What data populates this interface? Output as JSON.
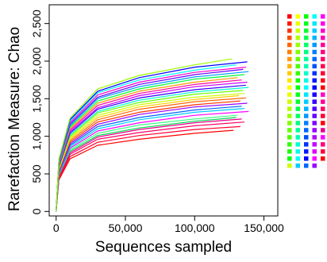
{
  "chart_data": {
    "type": "line",
    "title": "",
    "xlabel": "Sequences sampled",
    "ylabel": "Rarefaction Measure: Chao",
    "xlim": [
      -5000,
      160000
    ],
    "ylim": [
      -60,
      2750
    ],
    "x_ticks": [
      {
        "value": 0,
        "label": "0"
      },
      {
        "value": 50000,
        "label": "50,000"
      },
      {
        "value": 100000,
        "label": "100,000"
      },
      {
        "value": 150000,
        "label": "150,000"
      }
    ],
    "y_ticks": [
      {
        "value": 0,
        "label": "0"
      },
      {
        "value": 500,
        "label": "500"
      },
      {
        "value": 1000,
        "label": "1,000"
      },
      {
        "value": 1500,
        "label": "1,500"
      },
      {
        "value": 2000,
        "label": "2,000"
      },
      {
        "value": 2500,
        "label": "2,500"
      }
    ],
    "grid": false,
    "legend_placement": "right",
    "curve_shape": "rarefaction (saturating)",
    "series": [
      {
        "color": "#ff0000",
        "x": [
          0,
          2000,
          10000,
          30000,
          60000,
          100000,
          128000
        ],
        "y": [
          0,
          420,
          700,
          880,
          960,
          1040,
          1080
        ]
      },
      {
        "color": "#ff0033",
        "x": [
          0,
          2000,
          10000,
          30000,
          60000,
          100000,
          133000
        ],
        "y": [
          0,
          440,
          730,
          920,
          1010,
          1090,
          1130
        ]
      },
      {
        "color": "#ff0066",
        "x": [
          0,
          2000,
          10000,
          30000,
          60000,
          100000,
          136000
        ],
        "y": [
          0,
          460,
          760,
          960,
          1050,
          1140,
          1190
        ]
      },
      {
        "color": "#e6008a",
        "x": [
          0,
          2000,
          10000,
          30000,
          60000,
          100000,
          134000
        ],
        "y": [
          0,
          470,
          780,
          990,
          1090,
          1180,
          1230
        ]
      },
      {
        "color": "#00d94d",
        "x": [
          0,
          2000,
          10000,
          30000,
          60000,
          100000,
          130000
        ],
        "y": [
          0,
          480,
          800,
          1010,
          1110,
          1200,
          1250
        ]
      },
      {
        "color": "#44ff88",
        "x": [
          0,
          2000,
          10000,
          30000,
          60000,
          100000,
          131000
        ],
        "y": [
          0,
          490,
          820,
          1040,
          1150,
          1230,
          1280
        ]
      },
      {
        "color": "#ff00ff",
        "x": [
          0,
          2000,
          10000,
          30000,
          60000,
          100000,
          139000
        ],
        "y": [
          0,
          500,
          840,
          1070,
          1180,
          1280,
          1330
        ]
      },
      {
        "color": "#00ccff",
        "x": [
          0,
          2000,
          10000,
          30000,
          60000,
          100000,
          136000
        ],
        "y": [
          0,
          510,
          860,
          1100,
          1220,
          1320,
          1370
        ]
      },
      {
        "color": "#0066ff",
        "x": [
          0,
          2000,
          10000,
          30000,
          60000,
          100000,
          134000
        ],
        "y": [
          0,
          520,
          880,
          1130,
          1250,
          1350,
          1400
        ]
      },
      {
        "color": "#9900ff",
        "x": [
          0,
          2000,
          10000,
          30000,
          60000,
          100000,
          138000
        ],
        "y": [
          0,
          530,
          900,
          1160,
          1290,
          1390,
          1440
        ]
      },
      {
        "color": "#ff3300",
        "x": [
          0,
          2000,
          10000,
          30000,
          60000,
          100000,
          133000
        ],
        "y": [
          0,
          540,
          920,
          1190,
          1320,
          1420,
          1470
        ]
      },
      {
        "color": "#ff6600",
        "x": [
          0,
          2000,
          10000,
          30000,
          60000,
          100000,
          137000
        ],
        "y": [
          0,
          550,
          940,
          1220,
          1360,
          1460,
          1510
        ]
      },
      {
        "color": "#ffcc00",
        "x": [
          0,
          2000,
          10000,
          30000,
          60000,
          100000,
          132000
        ],
        "y": [
          0,
          560,
          960,
          1250,
          1390,
          1490,
          1540
        ]
      },
      {
        "color": "#ccff00",
        "x": [
          0,
          2000,
          10000,
          30000,
          60000,
          100000,
          136000
        ],
        "y": [
          0,
          570,
          980,
          1280,
          1420,
          1520,
          1570
        ]
      },
      {
        "color": "#66ff00",
        "x": [
          0,
          2000,
          10000,
          30000,
          60000,
          100000,
          135000
        ],
        "y": [
          0,
          580,
          1000,
          1310,
          1450,
          1560,
          1610
        ]
      },
      {
        "color": "#00ffcc",
        "x": [
          0,
          2000,
          10000,
          30000,
          60000,
          100000,
          139000
        ],
        "y": [
          0,
          590,
          1020,
          1330,
          1480,
          1590,
          1650
        ]
      },
      {
        "color": "#3300ff",
        "x": [
          0,
          2000,
          10000,
          30000,
          60000,
          100000,
          137000
        ],
        "y": [
          0,
          600,
          1040,
          1360,
          1510,
          1620,
          1680
        ]
      },
      {
        "color": "#cc00ff",
        "x": [
          0,
          2000,
          10000,
          30000,
          60000,
          100000,
          138000
        ],
        "y": [
          0,
          610,
          1060,
          1380,
          1540,
          1660,
          1720
        ]
      },
      {
        "color": "#ff0099",
        "x": [
          0,
          2000,
          10000,
          30000,
          60000,
          100000,
          134000
        ],
        "y": [
          0,
          620,
          1080,
          1410,
          1570,
          1690,
          1750
        ]
      },
      {
        "color": "#ff9900",
        "x": [
          0,
          2000,
          10000,
          30000,
          60000,
          100000,
          131000
        ],
        "y": [
          0,
          630,
          1100,
          1440,
          1600,
          1720,
          1780
        ]
      },
      {
        "color": "#00ff33",
        "x": [
          0,
          2000,
          10000,
          30000,
          60000,
          100000,
          136000
        ],
        "y": [
          0,
          640,
          1120,
          1470,
          1630,
          1760,
          1820
        ]
      },
      {
        "color": "#0099ff",
        "x": [
          0,
          2000,
          10000,
          30000,
          60000,
          100000,
          139000
        ],
        "y": [
          0,
          650,
          1140,
          1500,
          1660,
          1790,
          1860
        ]
      },
      {
        "color": "#6600ff",
        "x": [
          0,
          2000,
          10000,
          30000,
          60000,
          100000,
          135000
        ],
        "y": [
          0,
          660,
          1160,
          1520,
          1690,
          1820,
          1890
        ]
      },
      {
        "color": "#ff00cc",
        "x": [
          0,
          2000,
          10000,
          30000,
          60000,
          100000,
          137000
        ],
        "y": [
          0,
          670,
          1180,
          1550,
          1720,
          1850,
          1920
        ]
      },
      {
        "color": "#00ffff",
        "x": [
          0,
          2000,
          10000,
          30000,
          60000,
          100000,
          130000
        ],
        "y": [
          0,
          680,
          1200,
          1580,
          1750,
          1880,
          1950
        ]
      },
      {
        "color": "#0000ff",
        "x": [
          0,
          2000,
          10000,
          30000,
          60000,
          100000,
          138000
        ],
        "y": [
          0,
          690,
          1220,
          1600,
          1780,
          1920,
          1990
        ]
      },
      {
        "color": "#99ff00",
        "x": [
          0,
          2000,
          10000,
          30000,
          60000,
          100000,
          127000
        ],
        "y": [
          0,
          700,
          1240,
          1630,
          1810,
          1950,
          2030
        ]
      }
    ],
    "legend": {
      "columns": [
        {
          "colors": [
            "#ff0000",
            "#ff1a00",
            "#ff3300",
            "#ff4d00",
            "#ff6600",
            "#ff8000",
            "#ff9900",
            "#ffb300",
            "#ffcc00",
            "#ffe600",
            "#ffff00",
            "#e6ff00",
            "#ccff00",
            "#b3ff00",
            "#99ff00",
            "#80ff00",
            "#66ff00",
            "#4dff00",
            "#33ff00",
            "#1aff00",
            "#00ff00",
            "#ccff00"
          ]
        },
        {
          "colors": [
            "#ffff00",
            "#e6ff00",
            "#ccff00",
            "#b3ff00",
            "#99ff00",
            "#80ff00",
            "#66ff00",
            "#4dff00",
            "#33ff00",
            "#1aff00",
            "#00ff00",
            "#00ff1a",
            "#00ff33",
            "#00ff4d",
            "#00ff66",
            "#00ff80",
            "#00ff99",
            "#00ffb3",
            "#00ffcc",
            "#00ffe6",
            "#00ffff",
            "#00ccff"
          ]
        },
        {
          "colors": [
            "#00ff00",
            "#00ff1a",
            "#00ff33",
            "#00ff4d",
            "#00ff66",
            "#00ff80",
            "#00ff99",
            "#00ffb3",
            "#00ffcc",
            "#00ffe6",
            "#00ffff",
            "#00e6ff",
            "#00ccff",
            "#00b3ff",
            "#0099ff",
            "#0080ff",
            "#0066ff",
            "#004dff",
            "#0033ff",
            "#001aff",
            "#0000ff",
            "#0066ff"
          ]
        },
        {
          "colors": [
            "#00ffff",
            "#00e6ff",
            "#00ccff",
            "#00b3ff",
            "#0099ff",
            "#0080ff",
            "#0066ff",
            "#004dff",
            "#0033ff",
            "#001aff",
            "#0000ff",
            "#1a00ff",
            "#3300ff",
            "#4d00ff",
            "#6600ff",
            "#8000ff",
            "#9900ff",
            "#b300ff",
            "#cc00ff",
            "#e600ff",
            "#ff00ff",
            "#9900ff"
          ]
        },
        {
          "colors": [
            "#ff00ff",
            "#ff00e6",
            "#ff00cc",
            "#ff00b3",
            "#ff0099",
            "#ff0080",
            "#ff0066",
            "#ff004d",
            "#ff0033",
            "#ff001a",
            "#ff0000",
            "#ff00cc",
            "#ff0099",
            "#ff0066",
            "#ff0033",
            "#ff0000",
            "#e6008a",
            "#ff00ff",
            "#ff0080",
            "#ff0040",
            "#ff0000"
          ]
        }
      ]
    }
  }
}
